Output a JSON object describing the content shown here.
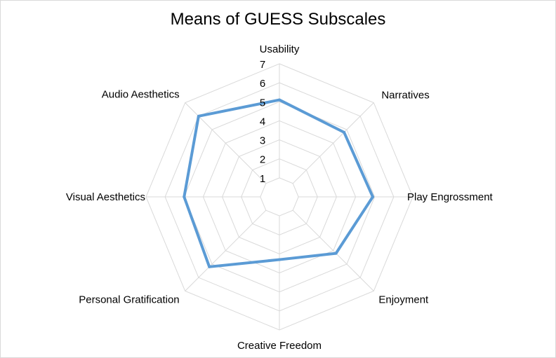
{
  "chart_data": {
    "type": "radar",
    "title": "Means of GUESS Subscales",
    "categories": [
      "Usability",
      "Narratives",
      "Play Engrossment",
      "Enjoyment",
      "Creative Freedom",
      "Personal Gratification",
      "Visual Aesthetics",
      "Audio Aesthetics"
    ],
    "series": [
      {
        "values": [
          5.1,
          4.8,
          4.9,
          4.2,
          3.3,
          5.2,
          5.0,
          6.0
        ]
      }
    ],
    "r_ticks": [
      "1",
      "2",
      "3",
      "4",
      "5",
      "6",
      "7"
    ],
    "r_range": [
      1,
      7
    ],
    "grid": true,
    "legend": "none",
    "colors": {
      "series": "#5b9bd5",
      "grid": "#d9d9d9",
      "text": "#000000"
    }
  }
}
